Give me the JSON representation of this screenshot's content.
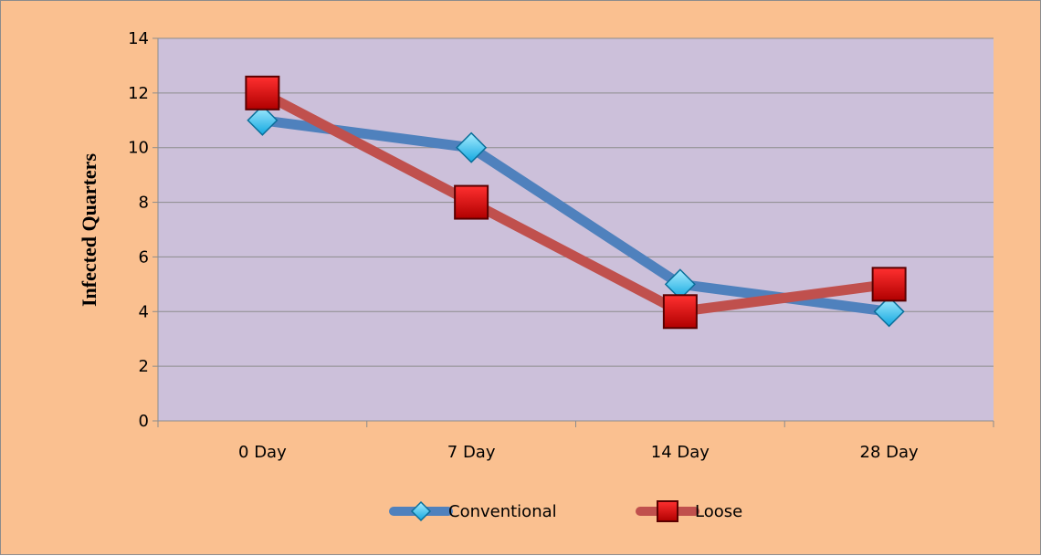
{
  "chart_data": {
    "type": "line",
    "title": "",
    "xlabel": "",
    "ylabel": "Infected Quarters",
    "categories": [
      "0 Day",
      "7 Day",
      "14 Day",
      "28 Day"
    ],
    "ylim": [
      0,
      14
    ],
    "yticks": [
      0,
      2,
      4,
      6,
      8,
      10,
      12,
      14
    ],
    "grid": "horizontal",
    "legend_position": "bottom",
    "series": [
      {
        "name": "Conventional",
        "values": [
          11,
          10,
          5,
          4
        ],
        "color": "#4f81bd",
        "marker": "diamond",
        "marker_color": "#1fb5e8"
      },
      {
        "name": "Loose",
        "values": [
          12,
          8,
          4,
          5
        ],
        "color": "#c0504d",
        "marker": "square",
        "marker_color": "#e00000"
      }
    ],
    "plot_background": "#ccc0da",
    "chart_background": "#fac090"
  }
}
